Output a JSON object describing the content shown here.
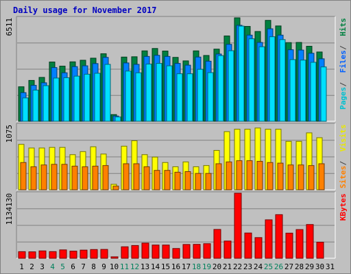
{
  "chart_data": {
    "type": "bar",
    "title": "Daily usage for November 2017",
    "categories": [
      "1",
      "2",
      "3",
      "4",
      "5",
      "6",
      "7",
      "8",
      "9",
      "10",
      "11",
      "12",
      "13",
      "14",
      "15",
      "16",
      "17",
      "18",
      "19",
      "20",
      "21",
      "22",
      "23",
      "24",
      "25",
      "26",
      "27",
      "28",
      "29",
      "30",
      "31"
    ],
    "weekend_days": [
      "4",
      "5",
      "11",
      "12",
      "18",
      "19",
      "25",
      "26"
    ],
    "panels": [
      {
        "max_label": "6511",
        "ymax": 6511,
        "right_labels": [
          "Pages",
          "Files",
          "Hits"
        ],
        "series": [
          {
            "name": "Hits",
            "color": "#008040",
            "values": [
              2170,
              2570,
              2760,
              3730,
              3470,
              3740,
              3840,
              3970,
              4250,
              420,
              4040,
              4060,
              4430,
              4580,
              4420,
              4020,
              3800,
              4430,
              4140,
              4540,
              5370,
              6510,
              5970,
              5650,
              6350,
              6000,
              4950,
              4960,
              4720,
              4360,
              null
            ]
          },
          {
            "name": "Files",
            "color": "#0080ff",
            "values": [
              1800,
              2260,
              2420,
              3380,
              3050,
              3440,
              3490,
              3630,
              4020,
              330,
              3670,
              3580,
              4080,
              4150,
              4080,
              3640,
              3530,
              4040,
              3780,
              4230,
              4840,
              6040,
              5420,
              4960,
              5820,
              5420,
              4500,
              4480,
              4280,
              3930,
              null
            ]
          },
          {
            "name": "Pages",
            "color": "#00e0ff",
            "values": [
              1470,
              1960,
              2240,
              2720,
              2740,
              2840,
              2960,
              3020,
              3580,
              270,
              3160,
              3050,
              3600,
              3640,
              3490,
              2990,
              2990,
              3270,
              3060,
              4130,
              4440,
              5990,
              5190,
              4690,
              5320,
              5140,
              3880,
              3850,
              3710,
              3420,
              null
            ]
          }
        ]
      },
      {
        "max_label": "1075",
        "ymax": 1075,
        "right_labels": [
          "Sites",
          "Visits"
        ],
        "series": [
          {
            "name": "Visits",
            "color": "#ffff00",
            "values": [
              750,
              690,
              690,
              700,
              700,
              580,
              630,
              710,
              590,
              90,
              720,
              810,
              580,
              540,
              450,
              380,
              460,
              380,
              400,
              650,
              960,
              1000,
              1000,
              1020,
              1000,
              1000,
              800,
              800,
              940,
              860,
              null
            ]
          },
          {
            "name": "Sites",
            "color": "#ff8000",
            "values": [
              450,
              380,
              410,
              420,
              420,
              390,
              380,
              390,
              400,
              60,
              430,
              430,
              380,
              320,
              320,
              290,
              300,
              270,
              270,
              430,
              460,
              480,
              480,
              470,
              450,
              440,
              410,
              410,
              400,
              430,
              null
            ]
          }
        ]
      },
      {
        "max_label": "1134130",
        "ymax": 1134130,
        "right_labels": [
          "KBytes"
        ],
        "series": [
          {
            "name": "KBytes",
            "color": "#ff0000",
            "values": [
              115000,
              112000,
              128000,
              116000,
              146000,
              124000,
              142000,
              152000,
              154000,
              25000,
              200000,
              222000,
              264000,
              230000,
              230000,
              170000,
              240000,
              242000,
              254000,
              502000,
              300000,
              1134000,
              440000,
              360000,
              670000,
              760000,
              438000,
              500000,
              588000,
              280000,
              null
            ]
          }
        ]
      }
    ],
    "colors": {
      "frame_bg": "#c0c0c0",
      "plot_bg": "#c0c0c0",
      "title": "#0000ff",
      "weekend_label": "#00805c"
    }
  }
}
